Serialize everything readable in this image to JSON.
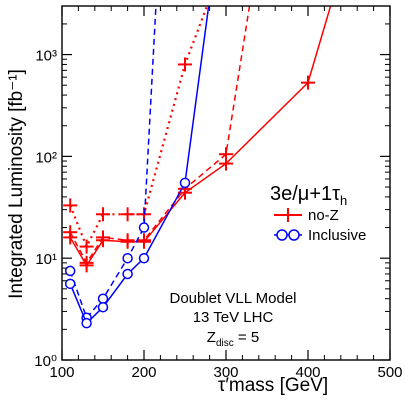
{
  "chart_data": {
    "type": "line",
    "xlabel": "τ′mass  [GeV]",
    "ylabel": "Integrated Luminosity [fb⁻¹]",
    "xlim": [
      100,
      500
    ],
    "ylim": [
      1,
      3000
    ],
    "yscale": "log",
    "x_ticks": [
      100,
      200,
      300,
      400,
      500
    ],
    "x_tick_labels": [
      "100",
      "200",
      "300",
      "400",
      "500"
    ],
    "y_ticks": [
      1,
      10,
      100,
      1000
    ],
    "y_tick_labels": [
      "10⁰",
      "10¹",
      "10²",
      "10³"
    ],
    "annotations": {
      "channel": "3e/μ+1τ",
      "channel_sub": "h",
      "model_line1": "Doublet VLL Model",
      "model_line2": "13 TeV  LHC",
      "zdisc_prefix": "Z",
      "zdisc_sub": "disc",
      "zdisc_suffix": " = 5"
    },
    "legend": {
      "placement": "right-middle",
      "entries": [
        {
          "label": "no-Z",
          "color": "#ff0000",
          "marker": "cross"
        },
        {
          "label": "Inclusive",
          "color": "#0000ff",
          "marker": "circle"
        }
      ]
    },
    "series": [
      {
        "legend": "no-Z",
        "style": "dotted",
        "color": "#ff0000",
        "marker": "cross",
        "x": [
          110,
          130,
          150,
          180,
          200,
          250,
          280
        ],
        "y": [
          33,
          13,
          27,
          27,
          27,
          800,
          3500
        ]
      },
      {
        "legend": "no-Z",
        "style": "dashed",
        "color": "#ff0000",
        "marker": "cross",
        "x": [
          110,
          130,
          150,
          180,
          200,
          250,
          300,
          330
        ],
        "y": [
          18,
          9,
          16,
          15,
          15,
          48,
          105,
          3500
        ]
      },
      {
        "legend": "no-Z",
        "style": "solid",
        "color": "#ff0000",
        "marker": "cross",
        "x": [
          110,
          130,
          150,
          180,
          200,
          250,
          300,
          400,
          430
        ],
        "y": [
          16,
          8.5,
          15,
          14.5,
          14.5,
          44,
          85,
          530,
          3500
        ]
      },
      {
        "legend": "Inclusive",
        "style": "dashed",
        "color": "#0000ff",
        "marker": "circle",
        "x": [
          110,
          130,
          150,
          180,
          200,
          215
        ],
        "y": [
          7.5,
          2.6,
          4,
          10,
          20,
          3500
        ]
      },
      {
        "legend": "Inclusive",
        "style": "solid",
        "color": "#0000ff",
        "marker": "circle",
        "x": [
          110,
          130,
          150,
          180,
          200,
          250,
          280
        ],
        "y": [
          5.6,
          2.3,
          3.3,
          7,
          10,
          55,
          3500
        ]
      }
    ]
  }
}
